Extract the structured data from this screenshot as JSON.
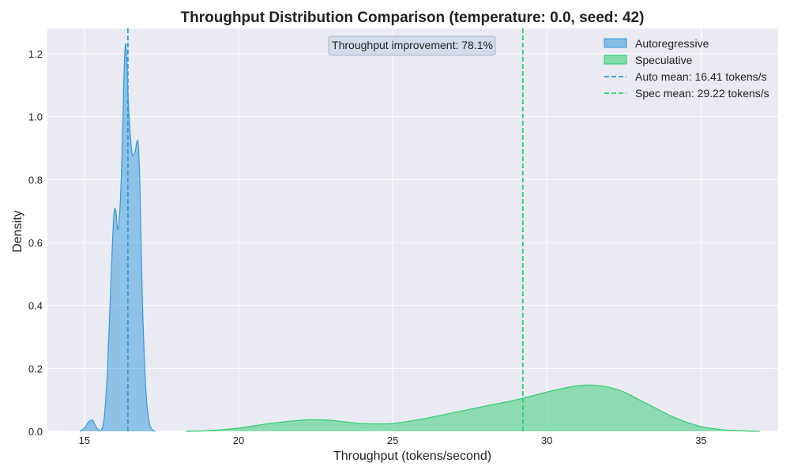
{
  "chart_data": {
    "type": "area",
    "title": "Throughput Distribution Comparison (temperature: 0.0, seed: 42)",
    "xlabel": "Throughput (tokens/second)",
    "ylabel": "Density",
    "xlim": [
      13.8,
      37.5
    ],
    "ylim": [
      0,
      1.28
    ],
    "xticks": [
      15,
      20,
      25,
      30,
      35
    ],
    "yticks": [
      0.0,
      0.2,
      0.4,
      0.6,
      0.8,
      1.0,
      1.2
    ],
    "xtick_labels": [
      "15",
      "20",
      "25",
      "30",
      "35"
    ],
    "ytick_labels": [
      "0.0",
      "0.2",
      "0.4",
      "0.6",
      "0.8",
      "1.0",
      "1.2"
    ],
    "grid": true,
    "legend_position": "top-right",
    "series": [
      {
        "name": "Autoregressive",
        "color": "#3498db",
        "x": [
          14.85,
          15.0,
          15.1,
          15.2,
          15.27,
          15.35,
          15.45,
          15.55,
          15.65,
          15.75,
          15.85,
          15.95,
          16.02,
          16.08,
          16.15,
          16.22,
          16.28,
          16.33,
          16.38,
          16.41,
          16.45,
          16.5,
          16.55,
          16.6,
          16.65,
          16.7,
          16.75,
          16.8,
          16.85,
          16.9,
          17.0,
          17.1,
          17.2,
          17.3
        ],
        "y": [
          0.0,
          0.01,
          0.025,
          0.035,
          0.035,
          0.02,
          0.005,
          0.004,
          0.05,
          0.2,
          0.45,
          0.68,
          0.7,
          0.64,
          0.7,
          0.88,
          1.12,
          1.23,
          1.17,
          1.08,
          1.0,
          0.93,
          0.88,
          0.88,
          0.89,
          0.92,
          0.91,
          0.78,
          0.55,
          0.35,
          0.12,
          0.03,
          0.005,
          0.0
        ]
      },
      {
        "name": "Speculative",
        "color": "#2ecc71",
        "x": [
          18.3,
          19.0,
          20.0,
          21.0,
          22.0,
          22.5,
          23.0,
          24.0,
          25.0,
          26.0,
          27.0,
          28.0,
          29.0,
          30.0,
          30.5,
          31.0,
          31.5,
          32.0,
          32.5,
          33.0,
          33.5,
          34.0,
          34.5,
          35.0,
          35.5,
          36.0,
          36.5,
          36.9
        ],
        "y": [
          0.0,
          0.002,
          0.01,
          0.025,
          0.035,
          0.037,
          0.035,
          0.025,
          0.025,
          0.04,
          0.06,
          0.08,
          0.1,
          0.125,
          0.136,
          0.145,
          0.147,
          0.14,
          0.125,
          0.1,
          0.075,
          0.05,
          0.03,
          0.015,
          0.007,
          0.003,
          0.001,
          0.0
        ]
      }
    ],
    "reference_lines": [
      {
        "name": "Auto mean: 16.41 tokens/s",
        "x": 16.41,
        "color": "#3498db",
        "style": "dashed"
      },
      {
        "name": "Spec mean: 29.22 tokens/s",
        "x": 29.22,
        "color": "#2ecc71",
        "style": "dashed"
      }
    ],
    "annotation": "Throughput improvement: 78.1%"
  }
}
